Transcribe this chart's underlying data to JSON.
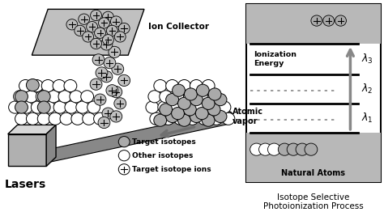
{
  "bg_color": "#ffffff",
  "title": "Isotope Selective\nPhotoionization Process",
  "title_fontsize": 7.5,
  "legend_labels": [
    "Target isotopes",
    "Other isotopes",
    "Target isotope ions"
  ],
  "ionization_label": "Ionization\nEnergy",
  "natural_atoms_label": "Natural Atoms",
  "lasers_label": "Lasers",
  "ion_collector_label": "Ion Collector",
  "atomic_vapor_label": "Atomic\nvapor",
  "gray_atom_color": "#aaaaaa",
  "tube_color": "#888888",
  "box_front_color": "#b0b0b0",
  "box_top_color": "#d8d8d8",
  "box_right_color": "#888888",
  "plate_color": "#c0c0c0",
  "band_color": "#b8b8b8",
  "arrow_color": "#909090"
}
